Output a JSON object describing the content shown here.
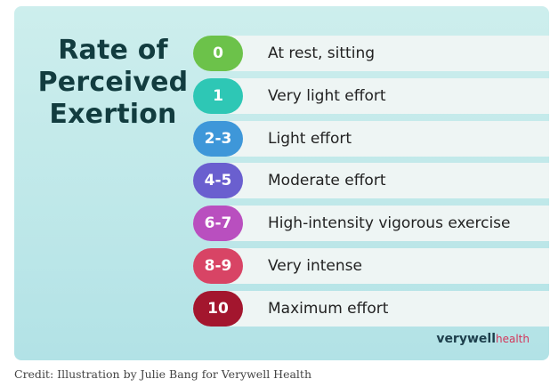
{
  "title_lines": [
    "Rate of",
    "Perceived",
    "Exertion"
  ],
  "scale": [
    {
      "level": "0",
      "label": "At rest, sitting",
      "color": "#6cc24a"
    },
    {
      "level": "1",
      "label": "Very light effort",
      "color": "#2ec7b5"
    },
    {
      "level": "2-3",
      "label": "Light effort",
      "color": "#3e97d9"
    },
    {
      "level": "4-5",
      "label": "Moderate effort",
      "color": "#6a5fcf"
    },
    {
      "level": "6-7",
      "label": "High-intensity vigorous exercise",
      "color": "#b94fbf"
    },
    {
      "level": "8-9",
      "label": "Very intense",
      "color": "#d84465"
    },
    {
      "level": "10",
      "label": "Maximum effort",
      "color": "#a3162e"
    }
  ],
  "logo": {
    "brand": "verywell",
    "sub": "health"
  },
  "credit": "Credit: Illustration by Julie Bang for Verywell Health"
}
